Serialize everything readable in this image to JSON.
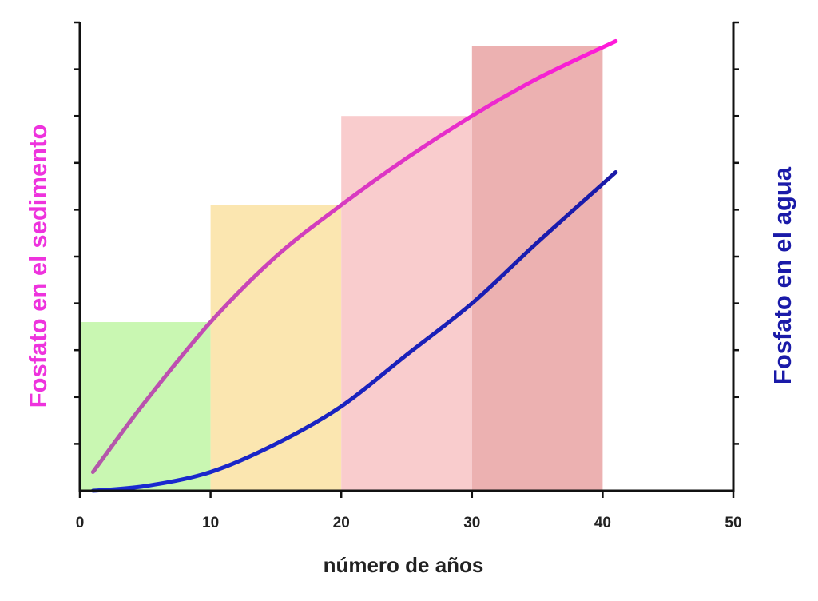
{
  "chart_data": {
    "type": "line",
    "xlabel": "número de años",
    "ylabel_left": "Fosfato en el sedimento",
    "ylabel_right": "Fosfato en el agua",
    "xlim": [
      0,
      50
    ],
    "ylim": [
      0,
      10
    ],
    "x_ticks": [
      0,
      10,
      20,
      30,
      40,
      50
    ],
    "y_tick_count": 10,
    "grid": false,
    "colors": {
      "ylabel_left": "#ee33dd",
      "ylabel_right": "#1a1aa8",
      "axis": "#111111"
    },
    "bars": [
      {
        "x0": 0,
        "x1": 10,
        "value": 3.6,
        "color": "#c9f7b2"
      },
      {
        "x0": 10,
        "x1": 20,
        "value": 6.1,
        "color": "#fbe6b0"
      },
      {
        "x0": 20,
        "x1": 30,
        "value": 8.0,
        "color": "#f9cccd"
      },
      {
        "x0": 30,
        "x1": 40,
        "value": 9.5,
        "color": "#ecb1b1"
      }
    ],
    "series": [
      {
        "color_start": "#b05aa8",
        "color_end": "#ff1ad9",
        "x": [
          1,
          5,
          10,
          15,
          20,
          25,
          30,
          35,
          41
        ],
        "y": [
          0.4,
          1.9,
          3.6,
          5.0,
          6.1,
          7.1,
          8.0,
          8.8,
          9.6
        ]
      },
      {
        "color_start": "#1a2bd6",
        "color_end": "#1a1aa8",
        "x": [
          1,
          5,
          10,
          15,
          20,
          25,
          30,
          35,
          41
        ],
        "y": [
          0.0,
          0.1,
          0.4,
          1.0,
          1.8,
          2.9,
          4.0,
          5.3,
          6.8
        ]
      }
    ]
  }
}
